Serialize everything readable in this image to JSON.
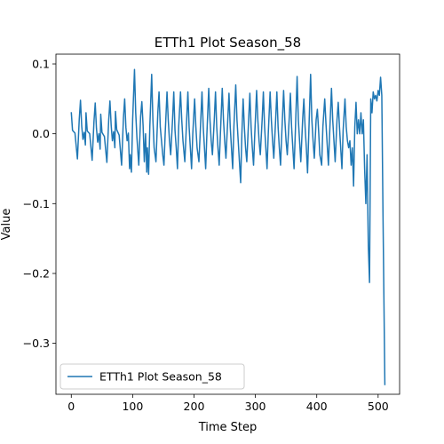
{
  "chart_data": {
    "type": "line",
    "title": "ETTh1 Plot Season_58",
    "xlabel": "Time Step",
    "ylabel": "Value",
    "xlim": [
      -25,
      535
    ],
    "ylim": [
      -0.373,
      0.114
    ],
    "xticks": [
      0,
      100,
      200,
      300,
      400,
      500
    ],
    "yticks": [
      -0.3,
      -0.2,
      -0.1,
      0.0,
      0.1
    ],
    "ytick_labels": [
      "−0.3",
      "−0.2",
      "−0.1",
      "0.0",
      "0.1"
    ],
    "grid": false,
    "legend_position": "lower-left",
    "series": [
      {
        "name": "ETTh1 Plot Season_58",
        "color": "#1f77b4",
        "cycle_keypoints": [
          [
            0,
            0.03
          ],
          [
            2,
            0.004
          ],
          [
            6,
            0.0
          ],
          [
            10,
            -0.03
          ],
          [
            13,
            0.02
          ],
          [
            15,
            0.045
          ],
          [
            17,
            0.01
          ],
          [
            19,
            -0.01
          ],
          [
            21,
            0.0
          ],
          [
            23,
            -0.02
          ]
        ],
        "points": [
          [
            0,
            0.031
          ],
          [
            2,
            0.005
          ],
          [
            6,
            0.001
          ],
          [
            10,
            -0.036
          ],
          [
            13,
            0.021
          ],
          [
            15,
            0.048
          ],
          [
            17,
            0.011
          ],
          [
            19,
            -0.008
          ],
          [
            21,
            0.002
          ],
          [
            23,
            -0.016
          ],
          [
            24,
            0.03
          ],
          [
            26,
            0.004
          ],
          [
            30,
            0.0
          ],
          [
            34,
            -0.038
          ],
          [
            37,
            0.018
          ],
          [
            39,
            0.044
          ],
          [
            41,
            0.008
          ],
          [
            43,
            -0.012
          ],
          [
            45,
            0.0
          ],
          [
            47,
            -0.022
          ],
          [
            48,
            0.028
          ],
          [
            50,
            0.002
          ],
          [
            54,
            -0.004
          ],
          [
            58,
            -0.041
          ],
          [
            61,
            0.02
          ],
          [
            63,
            0.047
          ],
          [
            65,
            0.012
          ],
          [
            67,
            -0.01
          ],
          [
            69,
            0.003
          ],
          [
            71,
            -0.02
          ],
          [
            72,
            0.032
          ],
          [
            74,
            0.006
          ],
          [
            78,
            -0.002
          ],
          [
            82,
            -0.045
          ],
          [
            85,
            0.023
          ],
          [
            87,
            0.05
          ],
          [
            89,
            0.009
          ],
          [
            91,
            -0.01
          ],
          [
            93,
            0.001
          ],
          [
            95,
            -0.05
          ],
          [
            96,
            -0.03
          ],
          [
            98,
            -0.055
          ],
          [
            100,
            0.02
          ],
          [
            103,
            0.092
          ],
          [
            105,
            0.03
          ],
          [
            107,
            -0.006
          ],
          [
            110,
            -0.045
          ],
          [
            113,
            0.025
          ],
          [
            115,
            0.046
          ],
          [
            117,
            0.012
          ],
          [
            119,
            -0.04
          ],
          [
            121,
            0.0
          ],
          [
            123,
            -0.055
          ],
          [
            124,
            -0.02
          ],
          [
            126,
            -0.058
          ],
          [
            128,
            0.01
          ],
          [
            131,
            0.085
          ],
          [
            133,
            0.02
          ],
          [
            135,
            -0.02
          ],
          [
            138,
            -0.04
          ],
          [
            141,
            0.03
          ],
          [
            143,
            0.06
          ],
          [
            145,
            0.01
          ],
          [
            147,
            -0.01
          ],
          [
            149,
            -0.03
          ],
          [
            151,
            -0.045
          ],
          [
            153,
            0.0
          ],
          [
            156,
            0.06
          ],
          [
            158,
            0.02
          ],
          [
            160,
            -0.01
          ],
          [
            162,
            -0.03
          ],
          [
            165,
            0.02
          ],
          [
            167,
            0.06
          ],
          [
            169,
            0.005
          ],
          [
            171,
            -0.02
          ],
          [
            173,
            -0.05
          ],
          [
            175,
            0.01
          ],
          [
            178,
            0.06
          ],
          [
            180,
            0.02
          ],
          [
            182,
            -0.01
          ],
          [
            185,
            -0.04
          ],
          [
            188,
            0.02
          ],
          [
            190,
            0.06
          ],
          [
            192,
            0.01
          ],
          [
            194,
            -0.02
          ],
          [
            196,
            -0.05
          ],
          [
            198,
            0.0
          ],
          [
            201,
            0.05
          ],
          [
            203,
            0.01
          ],
          [
            205,
            -0.02
          ],
          [
            208,
            -0.04
          ],
          [
            211,
            0.02
          ],
          [
            213,
            0.06
          ],
          [
            215,
            0.01
          ],
          [
            217,
            -0.02
          ],
          [
            219,
            -0.05
          ],
          [
            221,
            0.0
          ],
          [
            224,
            0.065
          ],
          [
            226,
            0.02
          ],
          [
            228,
            -0.01
          ],
          [
            230,
            -0.03
          ],
          [
            233,
            0.02
          ],
          [
            235,
            0.06
          ],
          [
            237,
            0.01
          ],
          [
            239,
            -0.02
          ],
          [
            241,
            -0.045
          ],
          [
            243,
            0.0
          ],
          [
            246,
            0.065
          ],
          [
            248,
            0.02
          ],
          [
            250,
            -0.01
          ],
          [
            252,
            -0.035
          ],
          [
            255,
            0.02
          ],
          [
            257,
            0.058
          ],
          [
            259,
            0.01
          ],
          [
            261,
            -0.02
          ],
          [
            263,
            -0.05
          ],
          [
            265,
            0.01
          ],
          [
            268,
            0.07
          ],
          [
            270,
            0.02
          ],
          [
            272,
            -0.01
          ],
          [
            274,
            -0.04
          ],
          [
            276,
            -0.07
          ],
          [
            278,
            0.0
          ],
          [
            280,
            0.05
          ],
          [
            282,
            0.01
          ],
          [
            284,
            -0.02
          ],
          [
            286,
            -0.04
          ],
          [
            289,
            0.02
          ],
          [
            291,
            0.058
          ],
          [
            293,
            0.01
          ],
          [
            295,
            -0.02
          ],
          [
            297,
            -0.045
          ],
          [
            299,
            0.0
          ],
          [
            302,
            0.062
          ],
          [
            304,
            0.02
          ],
          [
            306,
            -0.01
          ],
          [
            308,
            -0.03
          ],
          [
            311,
            0.02
          ],
          [
            313,
            0.06
          ],
          [
            315,
            0.01
          ],
          [
            317,
            -0.02
          ],
          [
            319,
            -0.05
          ],
          [
            321,
            0.0
          ],
          [
            324,
            0.06
          ],
          [
            326,
            0.02
          ],
          [
            328,
            -0.01
          ],
          [
            330,
            -0.035
          ],
          [
            333,
            0.02
          ],
          [
            335,
            0.06
          ],
          [
            337,
            0.01
          ],
          [
            339,
            -0.02
          ],
          [
            341,
            -0.045
          ],
          [
            343,
            0.0
          ],
          [
            346,
            0.062
          ],
          [
            348,
            0.02
          ],
          [
            350,
            -0.01
          ],
          [
            352,
            -0.03
          ],
          [
            355,
            0.02
          ],
          [
            357,
            0.058
          ],
          [
            359,
            0.01
          ],
          [
            361,
            -0.02
          ],
          [
            363,
            -0.05
          ],
          [
            365,
            0.0
          ],
          [
            368,
            0.082
          ],
          [
            370,
            0.02
          ],
          [
            372,
            -0.01
          ],
          [
            374,
            -0.04
          ],
          [
            377,
            0.02
          ],
          [
            379,
            0.05
          ],
          [
            381,
            0.01
          ],
          [
            383,
            -0.02
          ],
          [
            385,
            -0.056
          ],
          [
            387,
            0.0
          ],
          [
            390,
            0.085
          ],
          [
            392,
            0.02
          ],
          [
            394,
            -0.01
          ],
          [
            396,
            -0.035
          ],
          [
            399,
            0.02
          ],
          [
            401,
            0.035
          ],
          [
            403,
            0.005
          ],
          [
            405,
            -0.03
          ],
          [
            408,
            -0.045
          ],
          [
            410,
            0.01
          ],
          [
            413,
            0.05
          ],
          [
            415,
            0.015
          ],
          [
            417,
            -0.015
          ],
          [
            419,
            -0.045
          ],
          [
            421,
            0.0
          ],
          [
            424,
            0.065
          ],
          [
            426,
            0.02
          ],
          [
            428,
            -0.01
          ],
          [
            430,
            -0.04
          ],
          [
            433,
            0.02
          ],
          [
            435,
            0.045
          ],
          [
            437,
            0.01
          ],
          [
            439,
            -0.02
          ],
          [
            441,
            -0.05
          ],
          [
            443,
            0.005
          ],
          [
            446,
            0.05
          ],
          [
            448,
            0.01
          ],
          [
            450,
            -0.01
          ],
          [
            452,
            -0.02
          ],
          [
            454,
            -0.01
          ],
          [
            456,
            -0.045
          ],
          [
            458,
            -0.02
          ],
          [
            460,
            -0.075
          ],
          [
            462,
            0.01
          ],
          [
            464,
            0.045
          ],
          [
            466,
            0.0
          ],
          [
            468,
            0.02
          ],
          [
            470,
            0.0
          ],
          [
            472,
            0.03
          ],
          [
            474,
            0.0
          ],
          [
            476,
            0.02
          ],
          [
            478,
            -0.05
          ],
          [
            480,
            -0.1
          ],
          [
            482,
            -0.03
          ],
          [
            484,
            -0.16
          ],
          [
            486,
            -0.213
          ],
          [
            488,
            0.05
          ],
          [
            490,
            0.03
          ],
          [
            492,
            0.06
          ],
          [
            494,
            0.05
          ],
          [
            496,
            0.055
          ],
          [
            498,
            0.047
          ],
          [
            500,
            0.062
          ],
          [
            502,
            0.055
          ],
          [
            504,
            0.081
          ],
          [
            506,
            0.055
          ],
          [
            508,
            -0.12
          ],
          [
            511,
            -0.36
          ]
        ]
      }
    ]
  }
}
